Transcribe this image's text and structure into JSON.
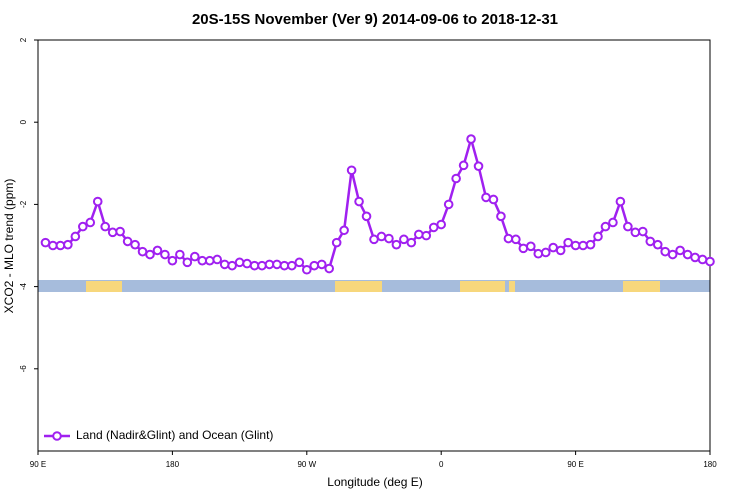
{
  "chart_data": {
    "type": "line",
    "title": "20S-15S November (Ver 9)   2014-09-06 to 2018-12-31",
    "x_label": "Longitude (deg E)",
    "y_label": "XCO2 - MLO trend (ppm)",
    "x": [
      95,
      100,
      105,
      110,
      115,
      120,
      125,
      130,
      135,
      140,
      145,
      150,
      155,
      160,
      165,
      170,
      175,
      180,
      185,
      190,
      195,
      200,
      205,
      210,
      215,
      220,
      225,
      230,
      235,
      240,
      245,
      250,
      255,
      260,
      265,
      270,
      275,
      280,
      285,
      290,
      295,
      300,
      305,
      310,
      315,
      320,
      325,
      330,
      335,
      340,
      345,
      350,
      355,
      360,
      365,
      370,
      375,
      380,
      385,
      390,
      395,
      400,
      405,
      410,
      415,
      420,
      425,
      430,
      435,
      440,
      445,
      450,
      455,
      460,
      465,
      470,
      475,
      480,
      485,
      490,
      495,
      500,
      505,
      510,
      515,
      520,
      525,
      530,
      535,
      540
    ],
    "series": [
      {
        "name": "Land (Nadir&Glint) and Ocean (Glint)",
        "color": "#a020f0",
        "values": [
          -2.93,
          -3.0,
          -3.0,
          -2.98,
          -2.78,
          -2.54,
          -2.44,
          -1.93,
          -2.54,
          -2.68,
          -2.66,
          -2.9,
          -2.98,
          -3.15,
          -3.22,
          -3.12,
          -3.22,
          -3.37,
          -3.22,
          -3.41,
          -3.27,
          -3.37,
          -3.37,
          -3.34,
          -3.46,
          -3.49,
          -3.41,
          -3.44,
          -3.49,
          -3.49,
          -3.46,
          -3.46,
          -3.49,
          -3.49,
          -3.41,
          -3.59,
          -3.49,
          -3.46,
          -3.56,
          -2.93,
          -2.63,
          -1.17,
          -1.93,
          -2.29,
          -2.85,
          -2.78,
          -2.83,
          -2.98,
          -2.85,
          -2.93,
          -2.73,
          -2.76,
          -2.56,
          -2.49,
          -2.0,
          -1.37,
          -1.05,
          -0.41,
          -1.07,
          -1.83,
          -1.88,
          -2.29,
          -2.83,
          -2.85,
          -3.07,
          -3.02,
          -3.2,
          -3.17,
          -3.05,
          -3.12,
          -2.93,
          -3.0,
          -3.0,
          -2.98,
          -2.78,
          -2.54,
          -2.44,
          -1.93,
          -2.54,
          -2.68,
          -2.66,
          -2.9,
          -2.98,
          -3.15,
          -3.22,
          -3.12,
          -3.22,
          -3.29,
          -3.34,
          -3.39
        ]
      }
    ],
    "xlim": [
      90,
      540
    ],
    "xticks": [
      {
        "value": 90,
        "label": "90 E"
      },
      180,
      {
        "value": 270,
        "label": "90 W"
      },
      {
        "value": 360,
        "label": "0"
      },
      {
        "value": 450,
        "label": "90 E"
      },
      {
        "value": 540,
        "label": "180"
      }
    ],
    "ylim": [
      -8,
      2
    ],
    "yticks": [
      2,
      0,
      -2,
      -4,
      -6
    ],
    "legend": "bottom-left"
  }
}
